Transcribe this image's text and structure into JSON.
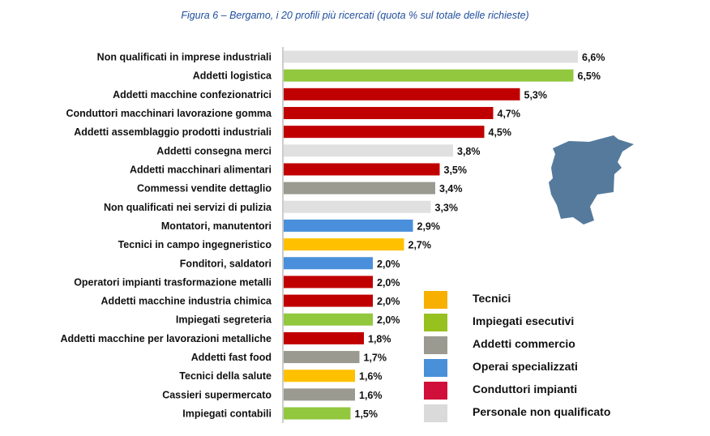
{
  "chart_data": {
    "type": "bar",
    "orientation": "horizontal",
    "title": "Figura 6 – Bergamo, i 20 profili più ricercati (quota % sul totale delle richieste)",
    "categories": [
      "Non qualificati in imprese industriali",
      "Addetti logistica",
      "Addetti macchine confezionatrici",
      "Conduttori macchinari lavorazione gomma",
      "Addetti assemblaggio prodotti industriali",
      "Addetti consegna merci",
      "Addetti macchinari alimentari",
      "Commessi vendite dettaglio",
      "Non qualificati nei servizi di pulizia",
      "Montatori, manutentori",
      "Tecnici in campo ingegneristico",
      "Fonditori, saldatori",
      "Operatori impianti trasformazione metalli",
      "Addetti macchine industria chimica",
      "Impiegati segreteria",
      "Addetti macchine per lavorazioni metalliche",
      "Addetti fast food",
      "Tecnici della salute",
      "Cassieri supermercato",
      "Impiegati contabili"
    ],
    "values": [
      6.6,
      6.5,
      5.3,
      4.7,
      4.5,
      3.8,
      3.5,
      3.4,
      3.3,
      2.9,
      2.7,
      2.0,
      2.0,
      2.0,
      2.0,
      1.8,
      1.7,
      1.6,
      1.6,
      1.5
    ],
    "value_labels": [
      "6,6%",
      "6,5%",
      "5,3%",
      "4,7%",
      "4,5%",
      "3,8%",
      "3,5%",
      "3,4%",
      "3,3%",
      "2,9%",
      "2,7%",
      "2,0%",
      "2,0%",
      "2,0%",
      "2,0%",
      "1,8%",
      "1,7%",
      "1,6%",
      "1,6%",
      "1,5%"
    ],
    "groups": [
      5,
      1,
      4,
      4,
      4,
      5,
      4,
      2,
      5,
      3,
      0,
      3,
      4,
      4,
      1,
      4,
      2,
      0,
      2,
      1
    ],
    "legend": [
      {
        "name": "Tecnici",
        "color": "#f8b000"
      },
      {
        "name": "Impiegati esecutivi",
        "color": "#97c11f"
      },
      {
        "name": "Addetti commercio",
        "color": "#9a9a90"
      },
      {
        "name": "Operai specializzati",
        "color": "#4a90d9"
      },
      {
        "name": "Conduttori impianti",
        "color": "#d0103a"
      },
      {
        "name": "Personale non qualificato",
        "color": "#dadada"
      }
    ],
    "bar_colors": [
      "#ffc000",
      "#92c83e",
      "#9a9a90",
      "#4a8fdb",
      "#c00000",
      "#e0e0e0"
    ],
    "xlim": [
      0,
      7
    ],
    "legend_position": "bottom-right"
  },
  "map_color": "#557a9c"
}
